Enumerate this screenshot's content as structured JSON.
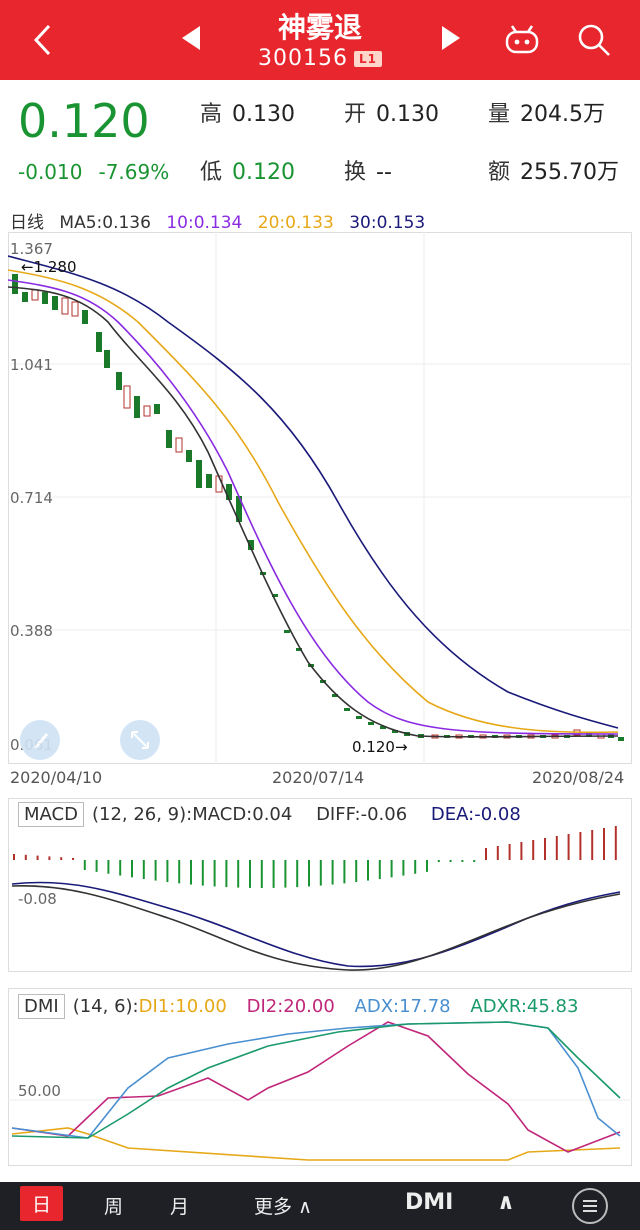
{
  "header": {
    "title": "神雾退",
    "code": "300156",
    "level_badge": "L1",
    "bg_color": "#e8262d",
    "icons": [
      "back-icon",
      "prev-arrow-icon",
      "next-arrow-icon",
      "robot-icon",
      "search-icon"
    ]
  },
  "quote": {
    "price": "0.120",
    "change": "-0.010",
    "change_pct": "-7.69%",
    "high_label": "高",
    "high": "0.130",
    "open_label": "开",
    "open": "0.130",
    "volume_label": "量",
    "volume": "204.5万",
    "low_label": "低",
    "low": "0.120",
    "turnover_label": "换",
    "turnover": "--",
    "amount_label": "额",
    "amount": "255.70万",
    "down_color": "#1a9432"
  },
  "ma_legend": {
    "period": "日线",
    "ma5": "MA5:0.136",
    "ma10": "10:0.134",
    "ma20": "20:0.133",
    "ma30": "30:0.153",
    "colors": {
      "ma5": "#333333",
      "ma10": "#8a2be2",
      "ma20": "#e6a817",
      "ma30": "#1a1a7a"
    }
  },
  "kline": {
    "y_ticks": [
      "1.367",
      "1.041",
      "0.714",
      "0.388",
      "0.061"
    ],
    "high_annotation": "←1.280",
    "low_annotation": "0.120→",
    "dates": [
      "2020/04/10",
      "2020/07/14",
      "2020/08/24"
    ]
  },
  "macd": {
    "name": "MACD",
    "params": "(12, 26, 9):MACD:0.04",
    "diff": "DIFF:-0.06",
    "dea": "DEA:-0.08",
    "y_tick": "-0.08"
  },
  "dmi": {
    "name": "DMI",
    "params": "(14, 6):",
    "di1": "DI1:10.00",
    "di2": "DI2:20.00",
    "adx": "ADX:17.78",
    "adxr": "ADXR:45.83",
    "y_tick": "50.00",
    "colors": {
      "di1": "#e6a817",
      "di2": "#c0267a",
      "adx": "#4a8fd0",
      "adxr": "#1a9a6a"
    }
  },
  "bottombar": {
    "tabs": [
      "日",
      "周",
      "月",
      "更多"
    ],
    "indicator": "DMI"
  }
}
